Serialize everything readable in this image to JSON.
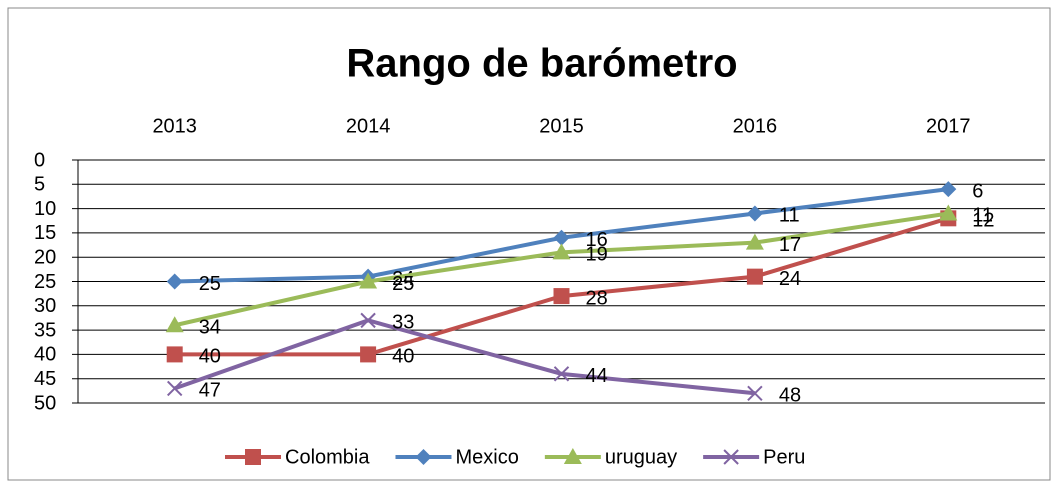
{
  "chart_data": {
    "type": "line",
    "title": "Rango de barómetro",
    "categories": [
      "2013",
      "2014",
      "2015",
      "2016",
      "2017"
    ],
    "series": [
      {
        "name": "Colombia",
        "color": "#c0504d",
        "marker": "square",
        "values": [
          40,
          40,
          28,
          24,
          12
        ]
      },
      {
        "name": "Mexico",
        "color": "#4f81bd",
        "marker": "diamond",
        "values": [
          25,
          24,
          16,
          11,
          6
        ]
      },
      {
        "name": "uruguay",
        "color": "#9bbb59",
        "marker": "triangle",
        "values": [
          34,
          25,
          19,
          17,
          11
        ]
      },
      {
        "name": "Peru",
        "color": "#8064a2",
        "marker": "x",
        "values": [
          47,
          33,
          44,
          48,
          null
        ]
      }
    ],
    "ylim": [
      0,
      50
    ],
    "yticks": [
      0,
      5,
      10,
      15,
      20,
      25,
      30,
      35,
      40,
      45,
      50
    ],
    "y_inverted": true,
    "grid": true,
    "legend": "bottom"
  }
}
